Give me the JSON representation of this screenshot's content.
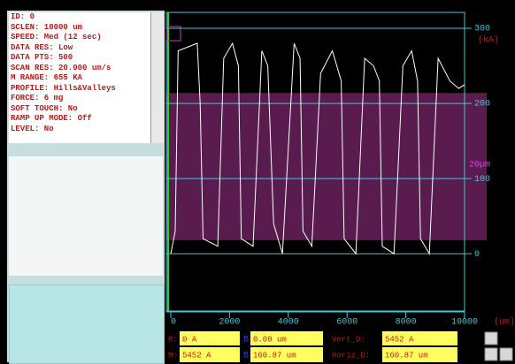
{
  "settings_panel": {
    "lines": [
      "ID: 0",
      "SCLEN: 10000 um",
      "SPEED: Med (12 sec)",
      "DATA RES: Low",
      "DATA PTS: 500",
      "SCAN RES: 20.000 um/s",
      "M RANGE: 655 KA",
      "PROFILE: Hills&Valleys",
      "FORCE: 6 mg",
      "SOFT TOUCH: No",
      "RAMP UP MODE: Off",
      "LEVEL: No"
    ]
  },
  "chart_data": {
    "type": "line",
    "x": [
      0,
      150,
      250,
      900,
      1000,
      1100,
      1600,
      1800,
      2100,
      2300,
      2400,
      2800,
      3100,
      3300,
      3500,
      3800,
      4200,
      4400,
      4500,
      4800,
      5100,
      5500,
      5800,
      5900,
      6300,
      6600,
      6900,
      7100,
      7200,
      7600,
      7900,
      8200,
      8400,
      8500,
      8800,
      9100,
      9500,
      9800,
      10000
    ],
    "series": [
      {
        "color": "#ffffff",
        "values": [
          0,
          30,
          270,
          280,
          200,
          20,
          10,
          260,
          280,
          250,
          20,
          10,
          270,
          250,
          40,
          0,
          280,
          260,
          30,
          10,
          240,
          270,
          230,
          20,
          0,
          260,
          250,
          230,
          10,
          0,
          250,
          270,
          230,
          20,
          0,
          260,
          230,
          220,
          225
        ]
      }
    ],
    "xlim": [
      0,
      10000
    ],
    "xticks": [
      0,
      2000,
      4000,
      6000,
      8000,
      10000
    ],
    "ylim": [
      -75,
      320
    ],
    "yticks": [
      0,
      100,
      200,
      300
    ],
    "x_unit_label": "(um)",
    "y_unit_label": "(kA)",
    "grid": true,
    "highlight_band": {
      "range": [
        18,
        214
      ],
      "color": "#8a2a7a",
      "label": "20µm"
    }
  },
  "readout": {
    "r_label": "R:",
    "r_value": "0 A",
    "b1_label": "B",
    "b1_value": "0.00 um",
    "vert_label": "Vert_D:",
    "vert_value": "5452 A",
    "m_label": "M:",
    "m_value": "5452 A",
    "b2_label": "B",
    "b2_value": "160.87 um",
    "horiz_label": "Horiz_D:",
    "horiz_value": "160.87 um"
  }
}
